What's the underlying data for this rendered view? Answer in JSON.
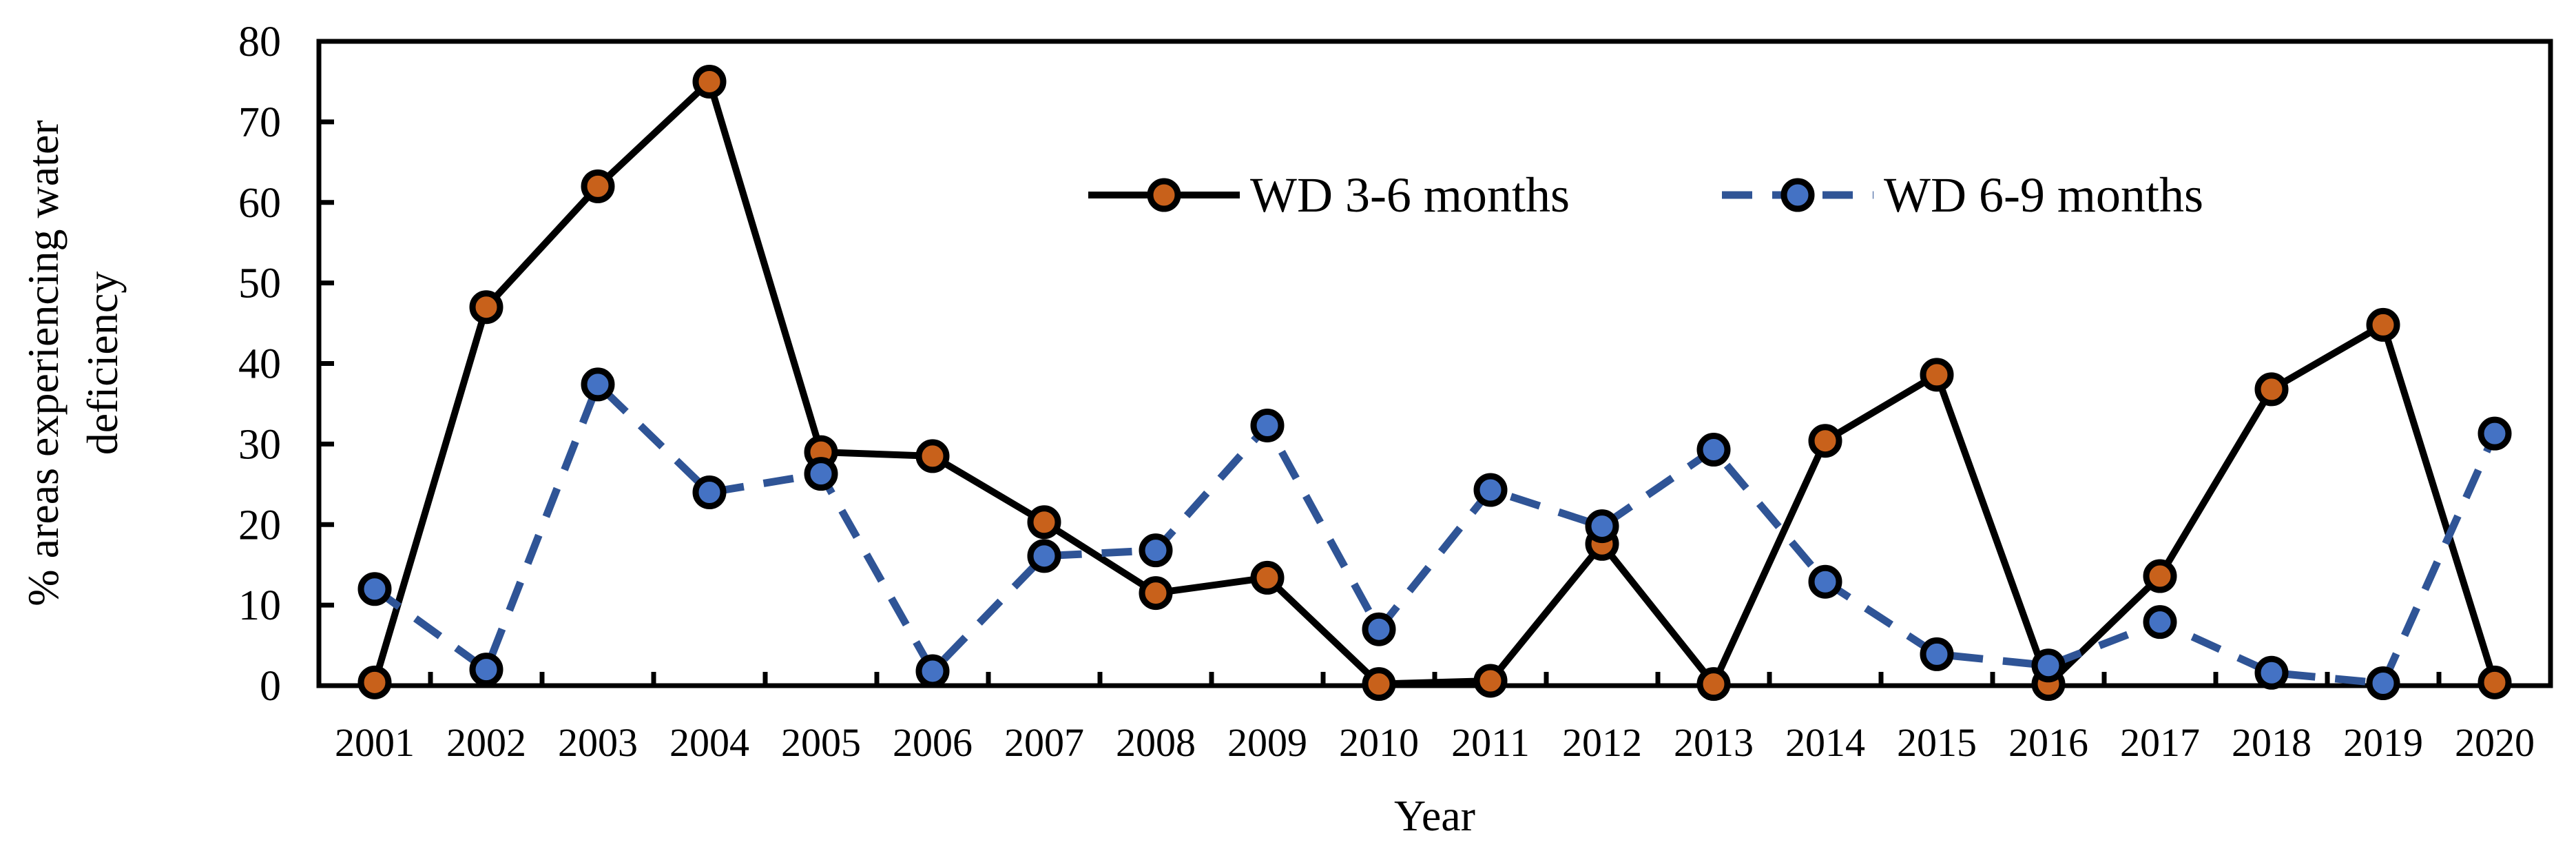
{
  "figure": {
    "background": "#ffffff",
    "axis_color": "#000000"
  },
  "chart_data": {
    "type": "line",
    "title": "",
    "xlabel": "Year",
    "ylabel": "% areas experiencing water deficiency",
    "ylabel_lines": [
      "% areas experiencing water",
      "deficiency"
    ],
    "ylim": [
      0,
      80
    ],
    "yticks": [
      0,
      10,
      20,
      30,
      40,
      50,
      60,
      70,
      80
    ],
    "grid": false,
    "legend_position": "top-center",
    "categories": [
      "2001",
      "2002",
      "2003",
      "2004",
      "2005",
      "2006",
      "2007",
      "2008",
      "2009",
      "2010",
      "2011",
      "2012",
      "2013",
      "2014",
      "2015",
      "2016",
      "2017",
      "2018",
      "2019",
      "2020"
    ],
    "series": [
      {
        "name": "WD 3-6 months",
        "line_color": "#000000",
        "line_style": "solid",
        "marker_color": "#C8611B",
        "values": [
          0.4,
          47,
          62,
          75,
          29,
          28.5,
          20.3,
          11.5,
          13.4,
          0.2,
          0.6,
          17.6,
          0.2,
          30.4,
          38.6,
          0.2,
          13.6,
          36.8,
          44.8,
          0.4
        ]
      },
      {
        "name": "WD 6-9 months",
        "line_color": "#2F5496",
        "line_style": "dashed",
        "marker_color": "#4472C4",
        "values": [
          12,
          2,
          37.4,
          24,
          26.3,
          1.8,
          16.1,
          16.8,
          32.3,
          7,
          24.3,
          19.8,
          29.3,
          12.9,
          3.9,
          2.5,
          7.9,
          1.6,
          0.3,
          31.3
        ]
      }
    ]
  }
}
